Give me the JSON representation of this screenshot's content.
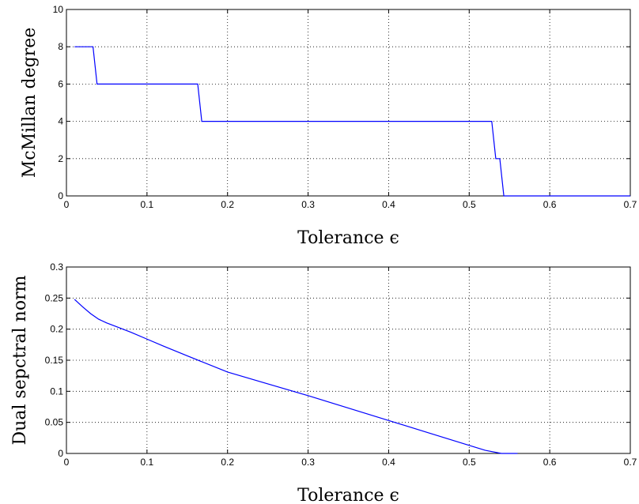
{
  "chart_data": [
    {
      "type": "line",
      "title": "",
      "xlabel": "Tolerance ϵ",
      "ylabel": "McMillan degree",
      "xlim": [
        0,
        0.7
      ],
      "ylim": [
        0,
        10
      ],
      "xticks": [
        0,
        0.1,
        0.2,
        0.3,
        0.4,
        0.5,
        0.6,
        0.7
      ],
      "xtick_labels": [
        "0",
        "0.1",
        "0.2",
        "0.3",
        "0.4",
        "0.5",
        "0.6",
        "0.7"
      ],
      "yticks": [
        0,
        2,
        4,
        6,
        8,
        10
      ],
      "ytick_labels": [
        "0",
        "2",
        "4",
        "6",
        "8",
        "10"
      ],
      "grid": true,
      "series": [
        {
          "color": "#0000ff",
          "x": [
            0.01,
            0.033,
            0.038,
            0.163,
            0.168,
            0.528,
            0.533,
            0.538,
            0.543,
            0.7
          ],
          "y": [
            8,
            8,
            6,
            6,
            4,
            4,
            2,
            2,
            0,
            0
          ]
        }
      ]
    },
    {
      "type": "line",
      "title": "",
      "xlabel": "Tolerance ϵ",
      "ylabel": "Dual sepctral norm",
      "xlim": [
        0,
        0.7
      ],
      "ylim": [
        0,
        0.3
      ],
      "xticks": [
        0,
        0.1,
        0.2,
        0.3,
        0.4,
        0.5,
        0.6,
        0.7
      ],
      "xtick_labels": [
        "0",
        "0.1",
        "0.2",
        "0.3",
        "0.4",
        "0.5",
        "0.6",
        "0.7"
      ],
      "yticks": [
        0,
        0.05,
        0.1,
        0.15,
        0.2,
        0.25,
        0.3
      ],
      "ytick_labels": [
        "0",
        "0.05",
        "0.1",
        "0.15",
        "0.2",
        "0.25",
        "0.3"
      ],
      "grid": true,
      "series": [
        {
          "color": "#0000ff",
          "x": [
            0.01,
            0.02,
            0.03,
            0.04,
            0.05,
            0.06,
            0.08,
            0.1,
            0.12,
            0.15,
            0.2,
            0.25,
            0.3,
            0.35,
            0.4,
            0.45,
            0.5,
            0.52,
            0.54,
            0.56
          ],
          "y": [
            0.248,
            0.236,
            0.225,
            0.216,
            0.21,
            0.205,
            0.195,
            0.184,
            0.173,
            0.157,
            0.131,
            0.112,
            0.093,
            0.073,
            0.053,
            0.033,
            0.013,
            0.005,
            0.0,
            0.0
          ]
        }
      ]
    }
  ]
}
